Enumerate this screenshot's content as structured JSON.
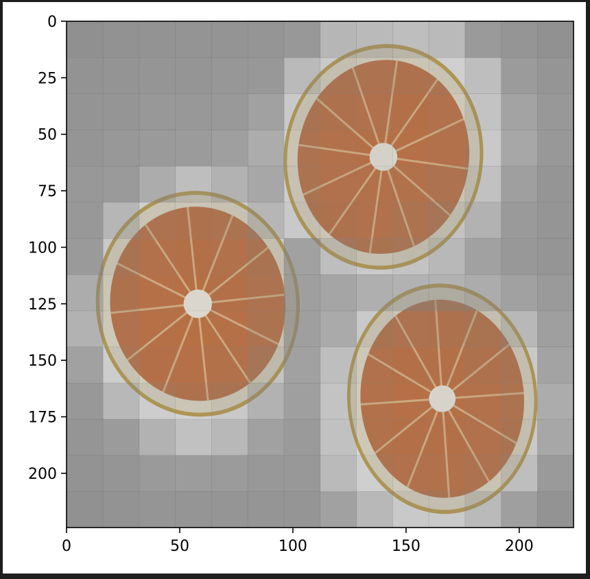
{
  "chart_data": {
    "type": "heatmap",
    "title": "",
    "xlabel": "",
    "ylabel": "",
    "image_content": "three orange slices",
    "image_size": [
      224,
      224
    ],
    "xlim": [
      0,
      224
    ],
    "ylim": [
      224,
      0
    ],
    "y_axis_inverted": true,
    "grid": false,
    "patch_size": 16,
    "patch_grid": [
      14,
      14
    ],
    "overlay_color": "#808080",
    "x_ticks": [
      0,
      50,
      100,
      150,
      200
    ],
    "y_ticks": [
      0,
      25,
      50,
      75,
      100,
      125,
      150,
      175,
      200
    ],
    "x_tick_labels": [
      "0",
      "50",
      "100",
      "150",
      "200"
    ],
    "y_tick_labels": [
      "0",
      "25",
      "50",
      "75",
      "100",
      "125",
      "150",
      "175",
      "200"
    ],
    "attention": [
      [
        0.05,
        0.07,
        0.08,
        0.09,
        0.09,
        0.1,
        0.12,
        0.38,
        0.42,
        0.45,
        0.42,
        0.14,
        0.1,
        0.06
      ],
      [
        0.08,
        0.09,
        0.1,
        0.1,
        0.11,
        0.12,
        0.42,
        0.55,
        0.6,
        0.62,
        0.6,
        0.45,
        0.15,
        0.1
      ],
      [
        0.09,
        0.1,
        0.12,
        0.12,
        0.13,
        0.2,
        0.55,
        0.62,
        0.65,
        0.7,
        0.65,
        0.5,
        0.22,
        0.12
      ],
      [
        0.1,
        0.12,
        0.14,
        0.15,
        0.18,
        0.3,
        0.6,
        0.68,
        0.7,
        0.72,
        0.68,
        0.55,
        0.25,
        0.12
      ],
      [
        0.12,
        0.14,
        0.3,
        0.45,
        0.35,
        0.25,
        0.58,
        0.65,
        0.68,
        0.66,
        0.6,
        0.48,
        0.18,
        0.1
      ],
      [
        0.12,
        0.38,
        0.6,
        0.62,
        0.58,
        0.38,
        0.55,
        0.62,
        0.65,
        0.6,
        0.5,
        0.35,
        0.14,
        0.1
      ],
      [
        0.14,
        0.55,
        0.68,
        0.7,
        0.66,
        0.55,
        0.2,
        0.45,
        0.55,
        0.5,
        0.4,
        0.2,
        0.12,
        0.1
      ],
      [
        0.3,
        0.62,
        0.72,
        0.75,
        0.7,
        0.6,
        0.18,
        0.24,
        0.32,
        0.35,
        0.35,
        0.3,
        0.2,
        0.14
      ],
      [
        0.35,
        0.65,
        0.74,
        0.76,
        0.72,
        0.58,
        0.18,
        0.28,
        0.55,
        0.6,
        0.62,
        0.55,
        0.4,
        0.18
      ],
      [
        0.2,
        0.58,
        0.7,
        0.72,
        0.68,
        0.5,
        0.2,
        0.45,
        0.65,
        0.7,
        0.7,
        0.62,
        0.55,
        0.22
      ],
      [
        0.12,
        0.4,
        0.58,
        0.62,
        0.55,
        0.35,
        0.18,
        0.5,
        0.68,
        0.72,
        0.72,
        0.68,
        0.58,
        0.3
      ],
      [
        0.1,
        0.15,
        0.35,
        0.48,
        0.4,
        0.2,
        0.14,
        0.48,
        0.66,
        0.7,
        0.7,
        0.65,
        0.55,
        0.25
      ],
      [
        0.08,
        0.1,
        0.14,
        0.16,
        0.15,
        0.12,
        0.12,
        0.42,
        0.6,
        0.65,
        0.66,
        0.6,
        0.45,
        0.14
      ],
      [
        0.06,
        0.08,
        0.1,
        0.1,
        0.1,
        0.1,
        0.1,
        0.2,
        0.4,
        0.55,
        0.55,
        0.42,
        0.18,
        0.08
      ]
    ]
  },
  "colors": {
    "background_frame": "#1e1e1e",
    "figure": "#ffffff",
    "overlay": "#808080",
    "peel_outer": "#c9a23a",
    "pith": "#f4ecd2",
    "flesh": "#c86a32",
    "segment_line": "#f0d39a",
    "core": "#f7f2e6"
  }
}
